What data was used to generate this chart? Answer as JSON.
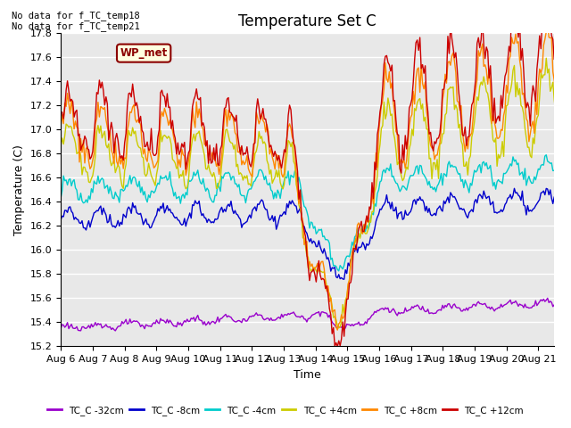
{
  "title": "Temperature Set C",
  "ylabel": "Temperature (C)",
  "xlabel": "Time",
  "annotations": [
    "No data for f_TC_temp18",
    "No data for f_TC_temp21"
  ],
  "wp_met_label": "WP_met",
  "ylim": [
    15.2,
    17.8
  ],
  "x_tick_labels": [
    "Aug 6",
    "Aug 7",
    "Aug 8",
    "Aug 9",
    "Aug 10",
    "Aug 11",
    "Aug 12",
    "Aug 13",
    "Aug 14",
    "Aug 15",
    "Aug 16",
    "Aug 17",
    "Aug 18",
    "Aug 19",
    "Aug 20",
    "Aug 21"
  ],
  "series_colors": {
    "TC_C -32cm": "#9900cc",
    "TC_C -8cm": "#0000cc",
    "TC_C -4cm": "#00cccc",
    "TC_C +4cm": "#cccc00",
    "TC_C +8cm": "#ff8800",
    "TC_C +12cm": "#cc0000"
  },
  "legend_colors": [
    "#9900cc",
    "#0000cc",
    "#00cccc",
    "#cccc00",
    "#ff8800",
    "#cc0000"
  ],
  "legend_labels": [
    "TC_C -32cm",
    "TC_C -8cm",
    "TC_C -4cm",
    "TC_C +4cm",
    "TC_C +8cm",
    "TC_C +12cm"
  ],
  "plot_bg_color": "#e8e8e8",
  "grid_color": "#ffffff",
  "title_fontsize": 12,
  "label_fontsize": 9,
  "tick_fontsize": 8
}
